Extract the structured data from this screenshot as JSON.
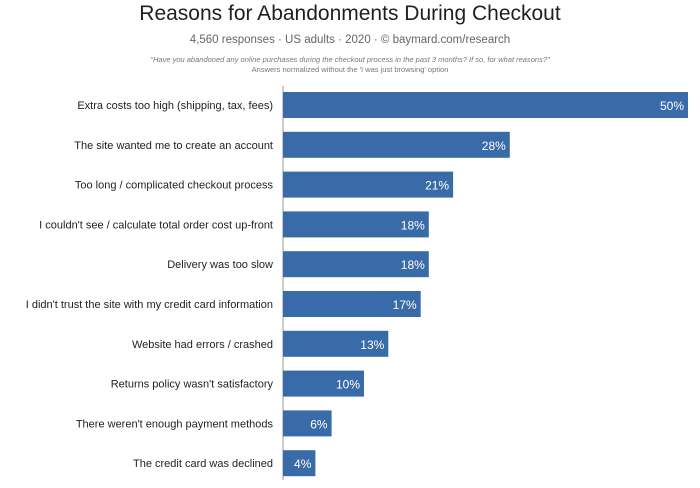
{
  "chart_data": {
    "type": "bar",
    "orientation": "horizontal",
    "title": "Reasons for Abandonments During Checkout",
    "subtitle": "4,560 responses  ·  US adults  ·  2020  ·  © baymard.com/research",
    "note_question": "\"Have you abandoned any online purchases during the checkout process in the past 3 months? If so, for what reasons?\"",
    "note_normalization": "Answers normalized without the 'I was just browsing' option",
    "categories": [
      "Extra costs too high (shipping, tax, fees)",
      "The site wanted me to create an account",
      "Too long / complicated checkout process",
      "I couldn't see / calculate total order cost up-front",
      "Delivery was too slow",
      "I didn't trust the site with my credit card information",
      "Website had errors / crashed",
      "Returns policy wasn't satisfactory",
      "There weren't enough payment methods",
      "The credit card was declined"
    ],
    "values": [
      50,
      28,
      21,
      18,
      18,
      17,
      13,
      10,
      6,
      4
    ],
    "value_labels": [
      "50%",
      "28%",
      "21%",
      "18%",
      "18%",
      "17%",
      "13%",
      "10%",
      "6%",
      "4%"
    ],
    "unit": "%",
    "bar_color": "#3a6ba9",
    "grid": false,
    "legend": "none"
  }
}
